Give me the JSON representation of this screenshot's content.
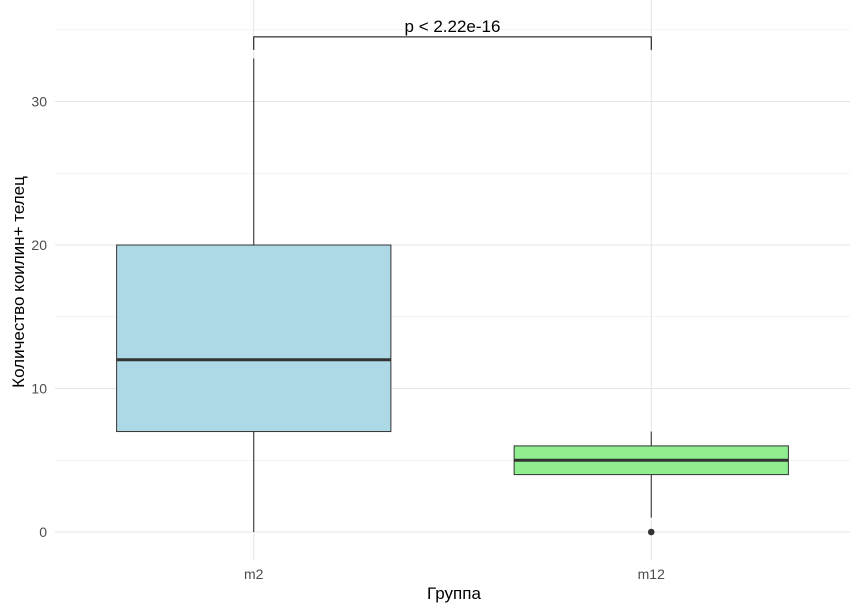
{
  "chart_data": {
    "type": "box",
    "title": "",
    "xlabel": "Группа",
    "ylabel": "Количество коилин+ телец",
    "ylim": [
      -2.2,
      35.3
    ],
    "yticks": [
      0,
      10,
      20,
      30
    ],
    "grid": true,
    "categories": [
      "m2",
      "m12"
    ],
    "boxes": [
      {
        "category": "m2",
        "min": 0,
        "q1": 7,
        "median": 12,
        "q3": 20,
        "max": 33,
        "outliers": [],
        "fill": "#add8e6"
      },
      {
        "category": "m12",
        "min": 1,
        "q1": 4,
        "median": 5,
        "q3": 6,
        "max": 7,
        "outliers": [
          0
        ],
        "fill": "#90ee90"
      }
    ],
    "annotations": [
      {
        "text": "p < 2.22e-16",
        "from": "m2",
        "to": "m12",
        "y": 34.5,
        "tick_to": 33.6
      }
    ]
  }
}
